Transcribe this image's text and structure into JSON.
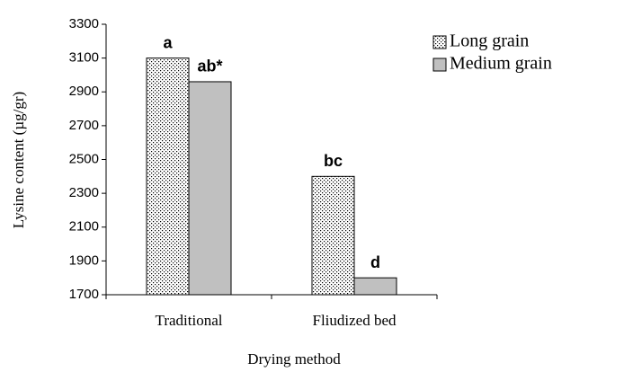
{
  "chart_data": {
    "type": "bar",
    "x_label": "Drying method",
    "y_label": "Lysine content (µg/gr)",
    "categories": [
      "Traditional",
      "Fliudized bed"
    ],
    "series": [
      {
        "name": "Long grain",
        "color": "#ffffff",
        "pattern": "dots",
        "values": [
          3100,
          2400
        ],
        "letters": [
          "a",
          "bc"
        ]
      },
      {
        "name": "Medium grain",
        "color": "#c0c0c0",
        "values": [
          2960,
          1800
        ],
        "letters": [
          "ab*",
          "d"
        ]
      }
    ],
    "ylim": [
      1700,
      3300
    ],
    "yticks": [
      1700,
      1900,
      2100,
      2300,
      2500,
      2700,
      2900,
      3100,
      3300
    ],
    "grid": false,
    "legend": "right"
  }
}
